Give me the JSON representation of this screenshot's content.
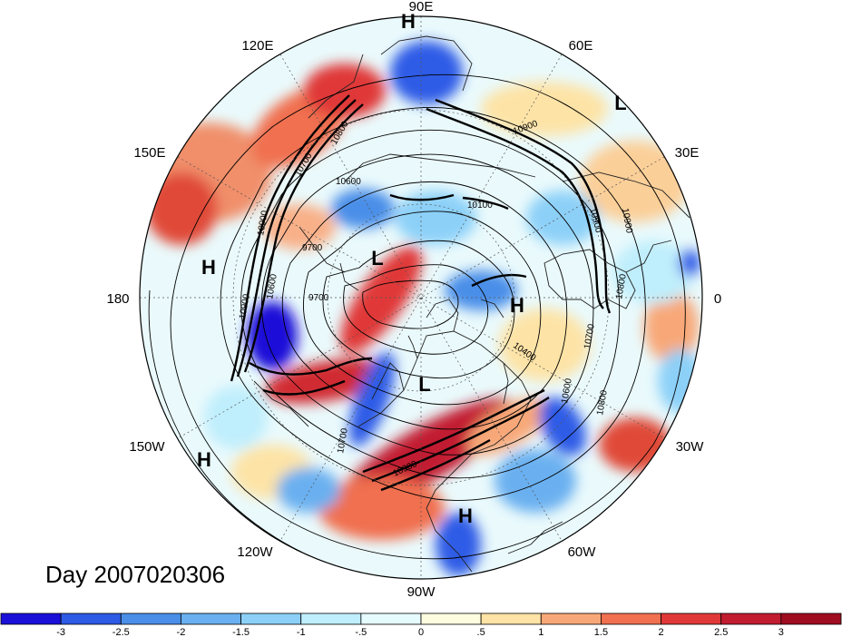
{
  "title": "Day 2007020306",
  "longitude_labels": {
    "top": "90E",
    "top_left": "120E",
    "top_right": "60E",
    "upper_left": "150E",
    "upper_right": "30E",
    "left": "180",
    "right": "0",
    "lower_left": "150W",
    "lower_right": "30W",
    "bottom_left": "120W",
    "bottom_right": "60W",
    "bottom": "90W"
  },
  "pressure_centers": [
    {
      "label": "H"
    },
    {
      "label": "L"
    },
    {
      "label": "H"
    },
    {
      "label": "L"
    },
    {
      "label": "H"
    },
    {
      "label": "L"
    },
    {
      "label": "H"
    },
    {
      "label": "H"
    }
  ],
  "contour_labels": [
    "10900",
    "10800",
    "10700",
    "10600",
    "10900",
    "9700",
    "9700",
    "10900",
    "10100",
    "10900",
    "10600",
    "10400",
    "10700",
    "10600",
    "10800",
    "10700",
    "10800",
    "10900",
    "10900"
  ],
  "colorbar": {
    "tick_labels": [
      "-3",
      "-2.5",
      "-2",
      "-1.5",
      "-1",
      "-.5",
      "0",
      ".5",
      "1",
      "1.5",
      "2",
      "2.5",
      "3"
    ],
    "colors": [
      "#1a10d8",
      "#2d5be6",
      "#4a8ee8",
      "#6ab0f0",
      "#8cd0f8",
      "#bfeefc",
      "#e6fbfd",
      "#fffde0",
      "#fde3a6",
      "#f8a878",
      "#f07050",
      "#e03838",
      "#c21c30",
      "#a00d20"
    ]
  }
}
